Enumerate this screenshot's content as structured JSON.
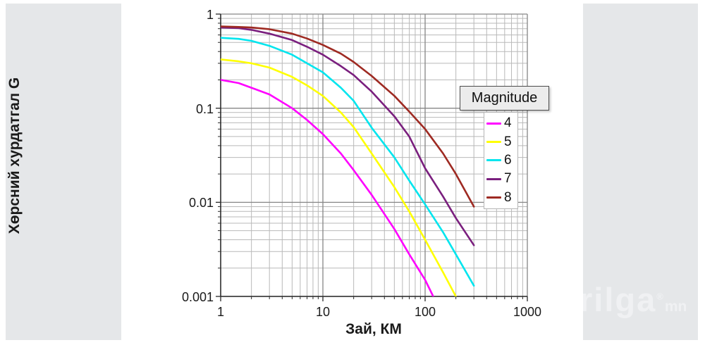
{
  "page": {
    "panel_color": "#e5e7e9",
    "watermark": {
      "text": "rilga",
      "reg_mark": "®",
      "suffix": "mn"
    }
  },
  "chart_data": {
    "type": "line",
    "title": "",
    "xlabel": "Зай, КМ",
    "ylabel": "Хөрсний хурдатгал G",
    "x_scale": "log",
    "y_scale": "log",
    "xlim": [
      1,
      1000
    ],
    "ylim": [
      0.001,
      1
    ],
    "x_ticks": [
      "1",
      "10",
      "100",
      "1000"
    ],
    "y_ticks": [
      "1",
      "0.1",
      "0.01",
      "0.001"
    ],
    "grid": true,
    "legend": {
      "title": "Magnitude",
      "position": "right-inside"
    },
    "series": [
      {
        "name": "4",
        "color": "#ff00ff",
        "points": [
          [
            1,
            0.2
          ],
          [
            1.5,
            0.185
          ],
          [
            2,
            0.165
          ],
          [
            3,
            0.14
          ],
          [
            5,
            0.1
          ],
          [
            7,
            0.075
          ],
          [
            10,
            0.053
          ],
          [
            15,
            0.033
          ],
          [
            20,
            0.022
          ],
          [
            30,
            0.012
          ],
          [
            50,
            0.0052
          ],
          [
            70,
            0.0028
          ],
          [
            100,
            0.0015
          ],
          [
            120,
            0.001
          ]
        ]
      },
      {
        "name": "5",
        "color": "#ffff00",
        "points": [
          [
            1,
            0.33
          ],
          [
            1.5,
            0.315
          ],
          [
            2,
            0.3
          ],
          [
            3,
            0.27
          ],
          [
            5,
            0.215
          ],
          [
            7,
            0.175
          ],
          [
            10,
            0.135
          ],
          [
            15,
            0.09
          ],
          [
            20,
            0.063
          ],
          [
            30,
            0.033
          ],
          [
            50,
            0.0145
          ],
          [
            70,
            0.008
          ],
          [
            100,
            0.004
          ],
          [
            150,
            0.0018
          ],
          [
            200,
            0.001
          ]
        ]
      },
      {
        "name": "6",
        "color": "#00e5ee",
        "points": [
          [
            1,
            0.56
          ],
          [
            1.5,
            0.545
          ],
          [
            2,
            0.52
          ],
          [
            3,
            0.46
          ],
          [
            5,
            0.37
          ],
          [
            7,
            0.3
          ],
          [
            10,
            0.24
          ],
          [
            15,
            0.165
          ],
          [
            20,
            0.12
          ],
          [
            30,
            0.062
          ],
          [
            50,
            0.03
          ],
          [
            70,
            0.017
          ],
          [
            100,
            0.0095
          ],
          [
            150,
            0.0048
          ],
          [
            200,
            0.0028
          ],
          [
            300,
            0.0013
          ]
        ]
      },
      {
        "name": "7",
        "color": "#7a1f7e",
        "points": [
          [
            1,
            0.72
          ],
          [
            1.5,
            0.71
          ],
          [
            2,
            0.68
          ],
          [
            3,
            0.62
          ],
          [
            5,
            0.53
          ],
          [
            7,
            0.45
          ],
          [
            10,
            0.37
          ],
          [
            15,
            0.28
          ],
          [
            20,
            0.225
          ],
          [
            30,
            0.15
          ],
          [
            50,
            0.082
          ],
          [
            70,
            0.05
          ],
          [
            100,
            0.023
          ],
          [
            150,
            0.0115
          ],
          [
            200,
            0.0068
          ],
          [
            300,
            0.0035
          ]
        ]
      },
      {
        "name": "8",
        "color": "#9e2a22",
        "points": [
          [
            1,
            0.74
          ],
          [
            1.5,
            0.73
          ],
          [
            2,
            0.72
          ],
          [
            3,
            0.69
          ],
          [
            5,
            0.62
          ],
          [
            7,
            0.55
          ],
          [
            10,
            0.47
          ],
          [
            15,
            0.38
          ],
          [
            20,
            0.31
          ],
          [
            30,
            0.22
          ],
          [
            50,
            0.135
          ],
          [
            70,
            0.092
          ],
          [
            100,
            0.06
          ],
          [
            150,
            0.033
          ],
          [
            200,
            0.02
          ],
          [
            300,
            0.009
          ]
        ]
      }
    ]
  }
}
